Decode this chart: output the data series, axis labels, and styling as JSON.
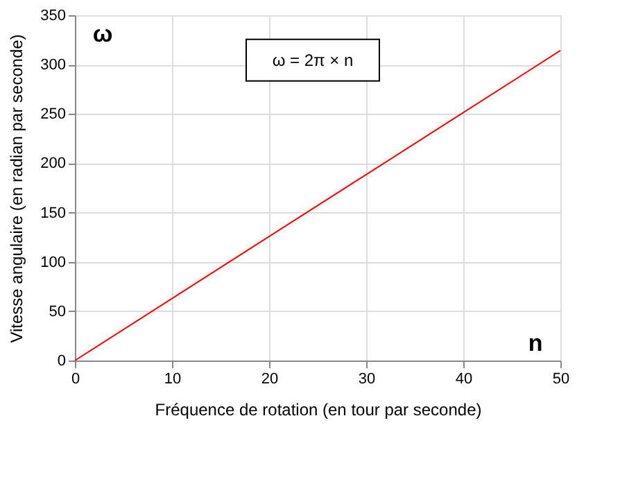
{
  "chart_data": {
    "type": "line",
    "xlabel": "Fréquence de rotation (en tour par seconde)",
    "ylabel": "Vitesse angulaire (en radian par seconde)",
    "x": [
      0,
      10,
      20,
      30,
      40,
      50
    ],
    "series": [
      {
        "color": "#ff0000",
        "values": [
          0,
          62.8,
          125.7,
          188.5,
          251.3,
          314.2
        ]
      }
    ],
    "xlim": [
      0,
      50
    ],
    "ylim": [
      0,
      350
    ],
    "xticks": [
      0,
      10,
      20,
      30,
      40,
      50
    ],
    "yticks": [
      0,
      50,
      100,
      150,
      200,
      250,
      300,
      350
    ],
    "grid": true,
    "marker": "none",
    "line_style": "solid",
    "annotations": [
      "ω = 2π × n",
      "ω",
      "n"
    ]
  }
}
